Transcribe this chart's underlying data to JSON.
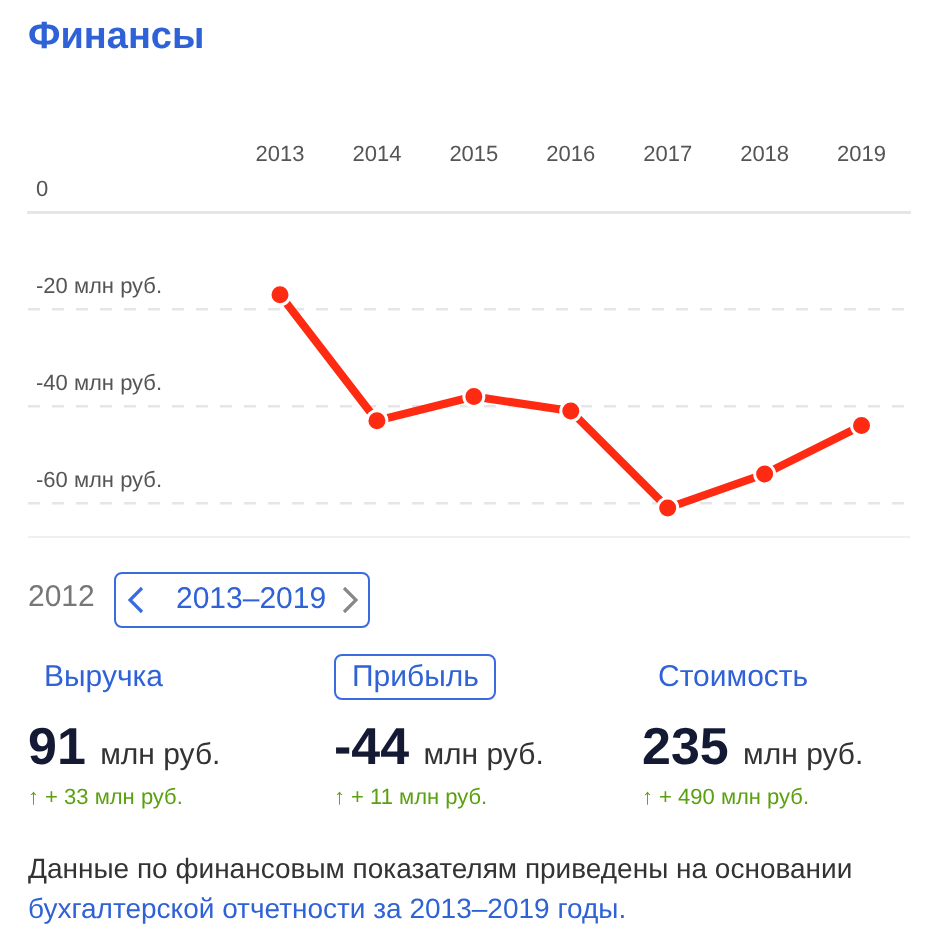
{
  "chart_data": {
    "type": "line",
    "title": "Финансы",
    "x": [
      2013,
      2014,
      2015,
      2016,
      2017,
      2018,
      2019
    ],
    "series": [
      {
        "color": "#ff2a12",
        "values": [
          -17,
          -43,
          -38,
          -41,
          -61,
          -54,
          -44
        ]
      }
    ],
    "xlim": [
      2010.4,
      2019.5
    ],
    "xticks": [
      2013,
      2014,
      2015,
      2016,
      2017,
      2018,
      2019
    ],
    "ylim": [
      -67,
      0
    ],
    "yticks": [
      0,
      {
        "value": -20,
        "label": "-20 млн руб."
      },
      {
        "value": -40,
        "label": "-40 млн руб."
      },
      {
        "value": -60,
        "label": "-60 млн руб."
      }
    ],
    "grid": "y",
    "legend": false,
    "marker": "circle",
    "line_style": "solid",
    "annotations": [
      "2012",
      "2013–2019",
      "Выручка",
      "Прибыль",
      "Стоимость",
      "91 млн руб.",
      "-44 млн руб.",
      "235 млн руб.",
      "↑ + 33 млн руб.",
      "↑ + 11 млн руб.",
      "↑ + 490 млн руб.",
      "Данные по финансовым показателям приведены на основании ",
      "бухгалтерской отчетности за 2013–2019 годы."
    ]
  }
}
